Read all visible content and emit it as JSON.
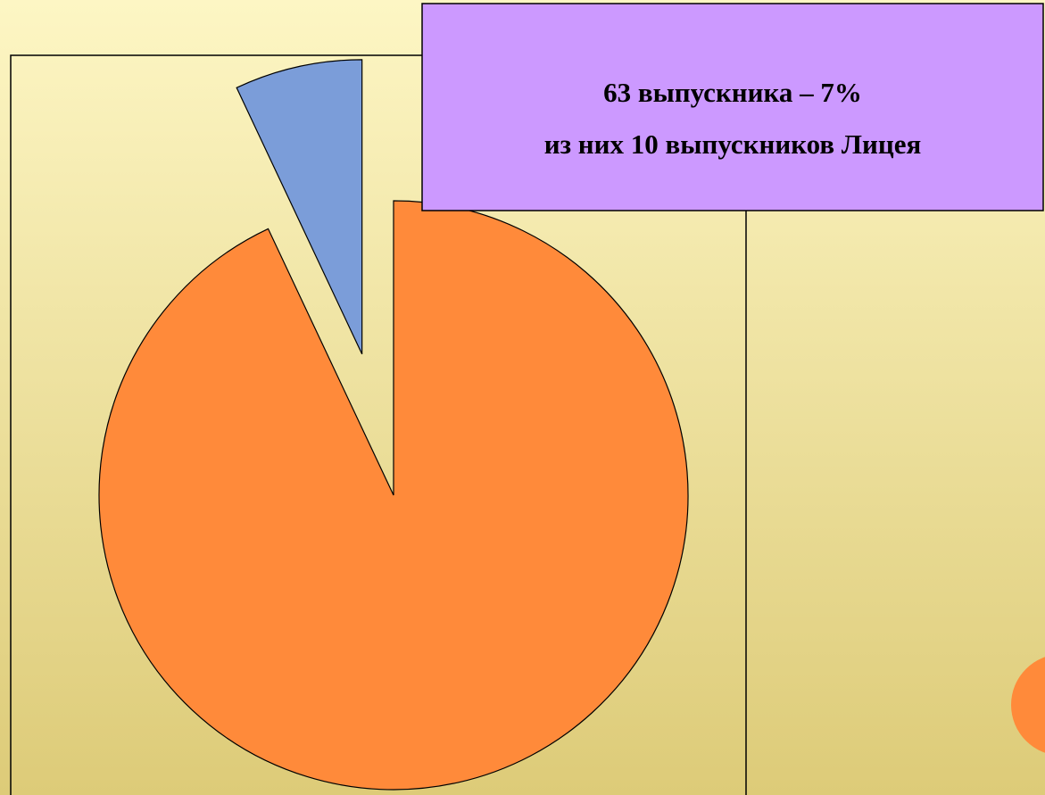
{
  "chart_data": {
    "type": "pie",
    "values": [
      93,
      7
    ],
    "colors": [
      "#ff8a3a",
      "#7b9dd9"
    ],
    "exploded": [
      false,
      true
    ],
    "annotation": [
      "63 выпускника – 7%",
      "из них 10 выпускников Лицея"
    ]
  }
}
